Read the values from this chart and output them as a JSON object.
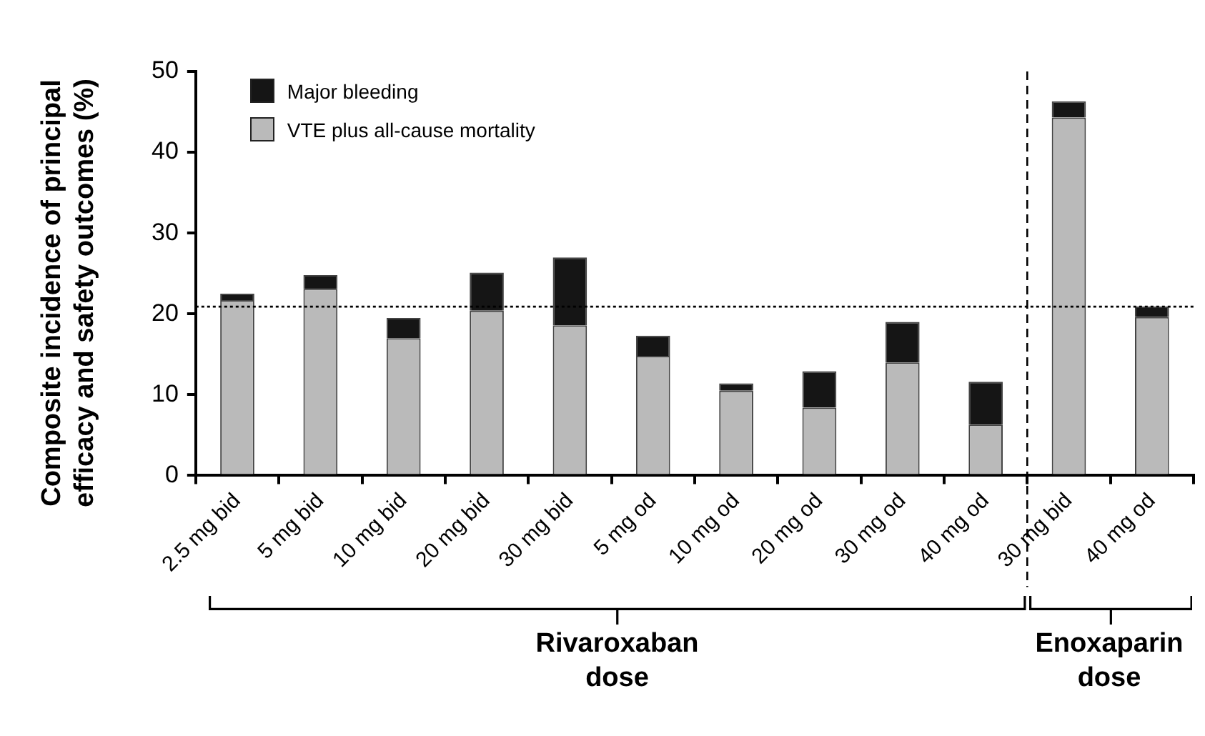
{
  "chart_data": {
    "type": "bar",
    "stacked": true,
    "ylabel": "Composite incidence of principal efficacy and safety outcomes (%)",
    "categories": [
      "2.5 mg bid",
      "5 mg bid",
      "10 mg bid",
      "20 mg bid",
      "30 mg bid",
      "5 mg od",
      "10 mg od",
      "20 mg od",
      "30 mg od",
      "40 mg od",
      "30 mg bid",
      "40 mg od"
    ],
    "series": [
      {
        "name": "VTE plus all-cause mortality",
        "color": "#bababa",
        "values": [
          21.7,
          23.1,
          17.0,
          20.4,
          18.6,
          14.8,
          10.5,
          8.4,
          14.0,
          6.3,
          44.3,
          19.6
        ]
      },
      {
        "name": "Major bleeding",
        "color": "#151515",
        "values": [
          0.8,
          1.7,
          2.5,
          4.7,
          8.4,
          2.5,
          0.9,
          4.5,
          5.0,
          5.3,
          2.0,
          1.3
        ]
      }
    ],
    "ylim": [
      0,
      50
    ],
    "yticks": [
      0,
      10,
      20,
      30,
      40,
      50
    ],
    "grid": false,
    "legend": "top left",
    "ref_lines": [
      {
        "axis": "y",
        "value": 20.9,
        "line_style": "dotted",
        "color": "#000000"
      }
    ],
    "annotations": [
      "Rivaroxaban dose",
      "Enoxaparin dose"
    ]
  }
}
